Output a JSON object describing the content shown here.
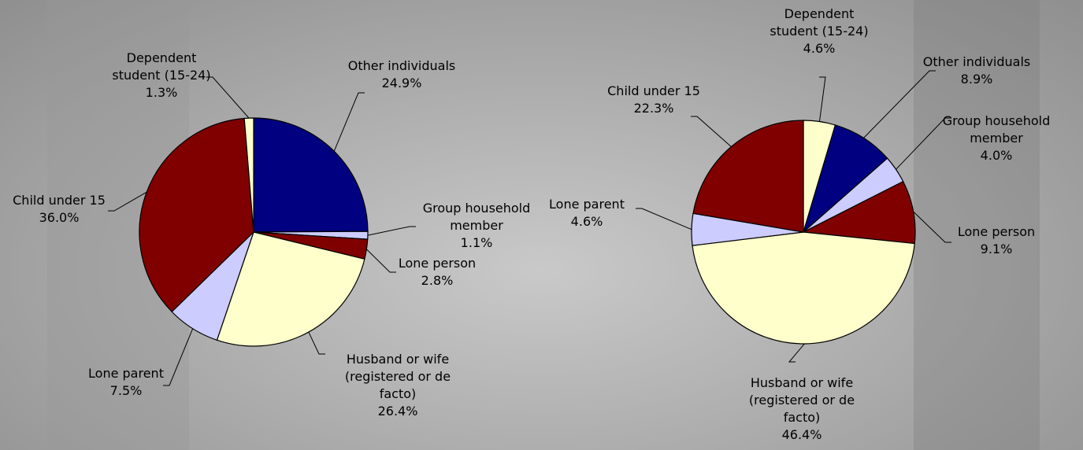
{
  "chart_data": [
    {
      "type": "pie",
      "categories": [
        "Other individuals",
        "Group household member",
        "Lone person",
        "Husband or wife (registered or de facto)",
        "Lone parent",
        "Child under 15",
        "Dependent student (15-24)"
      ],
      "values": [
        24.9,
        1.1,
        2.8,
        26.4,
        7.5,
        36.0,
        1.3
      ],
      "value_labels": [
        "24.9%",
        "1.1%",
        "2.8%",
        "26.4%",
        "7.5%",
        "36.0%",
        "1.3%"
      ],
      "colors": [
        "#000080",
        "#ccccff",
        "#800000",
        "#ffffcc",
        "#ccccff",
        "#800000",
        "#ffffcc"
      ]
    },
    {
      "type": "pie",
      "categories": [
        "Dependent student (15-24)",
        "Other individuals",
        "Group household member",
        "Lone person",
        "Husband or wife (registered or de facto)",
        "Lone parent",
        "Child under 15"
      ],
      "values": [
        4.6,
        8.9,
        4.0,
        9.1,
        46.4,
        4.6,
        22.3
      ],
      "value_labels": [
        "4.6%",
        "8.9%",
        "4.0%",
        "9.1%",
        "46.4%",
        "4.6%",
        "22.3%"
      ],
      "colors": [
        "#ffffcc",
        "#000080",
        "#ccccff",
        "#800000",
        "#ffffcc",
        "#ccccff",
        "#800000"
      ]
    }
  ]
}
